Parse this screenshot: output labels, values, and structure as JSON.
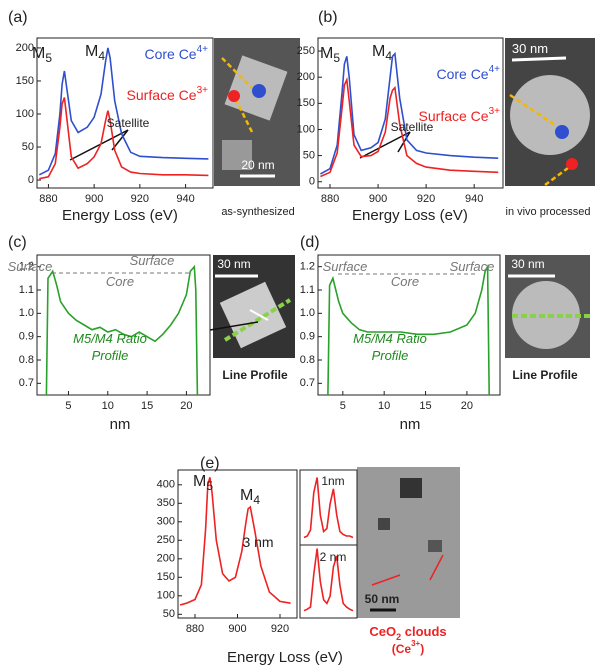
{
  "chart_data": [
    {
      "type": "line",
      "label": "(a)",
      "xlabel": "Energy Loss (eV)",
      "x": [
        876,
        880,
        883,
        885,
        886,
        887,
        888,
        890,
        893,
        897,
        900,
        903,
        905,
        906,
        907,
        909,
        912,
        916,
        920,
        930,
        940,
        950
      ],
      "xlim": [
        875,
        952
      ],
      "xticks": [
        880,
        900,
        920,
        940
      ],
      "ylim": [
        -12,
        215
      ],
      "yticks": [
        0,
        50,
        100,
        150,
        200
      ],
      "series": [
        {
          "name": "Core Ce",
          "name_sup": "4+",
          "color": "#2f4fcf",
          "values": [
            8,
            15,
            40,
            100,
            145,
            165,
            140,
            90,
            72,
            80,
            95,
            130,
            180,
            200,
            185,
            120,
            70,
            42,
            36,
            34,
            33,
            32
          ]
        },
        {
          "name": "Surface Ce",
          "name_sup": "3+",
          "color": "#ee2222",
          "values": [
            2,
            5,
            25,
            80,
            115,
            125,
            95,
            35,
            18,
            25,
            35,
            55,
            90,
            105,
            90,
            45,
            20,
            12,
            10,
            8,
            8,
            7
          ]
        }
      ],
      "annotations": [
        {
          "text": "M",
          "sub": "5"
        },
        {
          "text": "M",
          "sub": "4"
        },
        {
          "text": "Satellite"
        },
        {
          "text": "20 nm"
        },
        {
          "text": "as-synthesized"
        }
      ]
    },
    {
      "type": "line",
      "label": "(b)",
      "xlabel": "Energy Loss (eV)",
      "x": [
        876,
        880,
        883,
        885,
        886,
        887,
        888,
        890,
        893,
        897,
        900,
        903,
        905,
        906,
        907,
        909,
        912,
        916,
        920,
        930,
        940,
        950
      ],
      "xlim": [
        875,
        952
      ],
      "xticks": [
        880,
        900,
        920,
        940
      ],
      "ylim": [
        -12,
        275
      ],
      "yticks": [
        0,
        50,
        100,
        150,
        200,
        250
      ],
      "series": [
        {
          "name": "Core Ce",
          "name_sup": "4+",
          "color": "#2f4fcf",
          "values": [
            15,
            25,
            70,
            170,
            225,
            240,
            200,
            90,
            60,
            65,
            75,
            120,
            200,
            240,
            245,
            160,
            80,
            60,
            55,
            50,
            47,
            45
          ]
        },
        {
          "name": "Surface Ce",
          "name_sup": "3+",
          "color": "#ee2222",
          "values": [
            10,
            18,
            55,
            140,
            185,
            195,
            155,
            70,
            48,
            50,
            58,
            95,
            160,
            175,
            180,
            110,
            50,
            35,
            28,
            22,
            20,
            18
          ]
        }
      ],
      "annotations": [
        {
          "text": "M",
          "sub": "5"
        },
        {
          "text": "M",
          "sub": "4"
        },
        {
          "text": "Satellite"
        },
        {
          "text": "30 nm"
        },
        {
          "text": "in vivo processed"
        }
      ]
    },
    {
      "type": "line",
      "label": "(c)",
      "xlabel": "nm",
      "x": [
        2.2,
        2.4,
        3,
        3.5,
        4,
        5,
        6,
        7,
        8,
        9,
        10,
        11,
        12,
        13,
        14,
        15,
        16,
        17,
        18,
        19,
        20,
        20.5,
        21,
        21.2,
        21.4
      ],
      "xlim": [
        1,
        23
      ],
      "xticks": [
        5,
        10,
        15,
        20
      ],
      "ylim": [
        0.65,
        1.25
      ],
      "yticks": [
        0.7,
        0.8,
        0.9,
        {
          "value": 1,
          "label": "1.0"
        },
        1.1,
        1.2
      ],
      "series": [
        {
          "color": "#2aa12a",
          "values": [
            0.65,
            1.15,
            1.18,
            1.12,
            1.05,
            1,
            0.97,
            0.95,
            0.93,
            0.94,
            0.92,
            0.93,
            0.91,
            0.9,
            0.92,
            0.9,
            0.88,
            0.91,
            0.95,
            1,
            1.08,
            1.18,
            1.2,
            1.1,
            0.65
          ]
        }
      ],
      "annotations": [
        {
          "text": "Surface"
        },
        {
          "text": "Surface"
        },
        {
          "text": "Core"
        },
        {
          "text": "M5/M4 Ratio"
        },
        {
          "text": "Profile"
        },
        {
          "text": "30 nm"
        },
        {
          "text": "Line Profile"
        }
      ]
    },
    {
      "type": "line",
      "label": "(d)",
      "xlabel": "nm",
      "x": [
        3.2,
        3.4,
        3.8,
        4.5,
        5,
        6,
        7,
        8,
        10,
        12,
        14,
        16,
        18,
        20,
        21,
        21.8,
        22.2,
        22.5,
        22.7
      ],
      "xlim": [
        2,
        24
      ],
      "xticks": [
        5,
        10,
        15,
        20
      ],
      "ylim": [
        0.65,
        1.25
      ],
      "yticks": [
        0.7,
        0.8,
        0.9,
        {
          "value": 1,
          "label": "1.0"
        },
        1.1,
        1.2
      ],
      "series": [
        {
          "color": "#2aa12a",
          "values": [
            0.65,
            1.12,
            1.15,
            1.05,
            1,
            0.96,
            0.93,
            0.92,
            0.92,
            0.92,
            0.91,
            0.91,
            0.92,
            0.95,
            1,
            1.1,
            1.18,
            1.2,
            0.65
          ]
        }
      ],
      "annotations": [
        {
          "text": "Surface"
        },
        {
          "text": "Surface"
        },
        {
          "text": "Core"
        },
        {
          "text": "M5/M4 Ratio"
        },
        {
          "text": "Profile"
        },
        {
          "text": "30 nm"
        },
        {
          "text": "Line Profile"
        }
      ]
    },
    {
      "type": "line",
      "label": "(e)",
      "xlabel": "Energy Loss (eV)",
      "x": [
        873,
        876,
        880,
        883,
        885,
        886,
        887,
        888,
        890,
        893,
        896,
        899,
        902,
        904,
        905,
        906,
        908,
        911,
        915,
        920,
        925
      ],
      "xlim": [
        872,
        928
      ],
      "xticks": [
        880,
        900,
        920
      ],
      "ylim": [
        40,
        440
      ],
      "yticks": [
        50,
        100,
        150,
        200,
        250,
        300,
        350,
        400
      ],
      "series": [
        {
          "color": "#ee2222",
          "values": [
            75,
            80,
            90,
            130,
            280,
            400,
            420,
            380,
            250,
            160,
            140,
            150,
            220,
            300,
            335,
            340,
            280,
            180,
            110,
            85,
            80
          ]
        }
      ],
      "annotations": [
        {
          "text": "M",
          "sub": "5"
        },
        {
          "text": "M",
          "sub": "4"
        },
        {
          "text": "3 nm"
        },
        {
          "text": "50 nm"
        },
        {
          "text": "CeO",
          "sub": "2",
          "after": " clouds"
        },
        {
          "text": "(Ce",
          "sup": "3+",
          "after": ")"
        }
      ]
    },
    {
      "type": "line",
      "ylim": [
        0,
        100
      ],
      "series": [
        {
          "color": "#ee2222",
          "values": [
            10,
            12,
            20,
            70,
            90,
            40,
            18,
            22,
            55,
            75,
            40,
            18,
            14,
            12,
            12,
            10
          ]
        }
      ],
      "annotations": [
        {
          "text": "1nm"
        }
      ]
    },
    {
      "type": "line",
      "ylim": [
        0,
        100
      ],
      "series": [
        {
          "color": "#ee2222",
          "values": [
            10,
            12,
            15,
            60,
            95,
            50,
            25,
            20,
            30,
            70,
            85,
            45,
            20,
            15,
            12,
            10
          ]
        }
      ],
      "annotations": [
        {
          "text": "2 nm"
        }
      ]
    }
  ]
}
